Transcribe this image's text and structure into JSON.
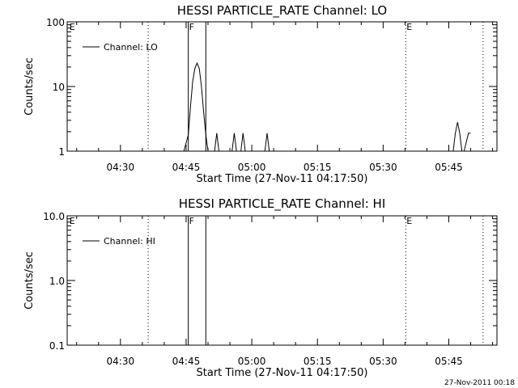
{
  "chart_data": [
    {
      "type": "line",
      "title": "HESSI PARTICLE_RATE Channel: LO",
      "xlabel": "Start Time (27-Nov-11 04:17:50)",
      "ylabel": "Counts/sec",
      "yscale": "log",
      "ylim": [
        1,
        100
      ],
      "ytick_values": [
        1,
        10,
        100
      ],
      "ytick_labels": [
        "1",
        "10",
        "100"
      ],
      "xlim": [
        "04:17:50",
        "05:56:00"
      ],
      "xtick_labels": [
        "04:30",
        "04:45",
        "05:00",
        "05:15",
        "05:30",
        "05:45"
      ],
      "legend": {
        "position": "top-left",
        "entries": [
          "Channel: LO"
        ]
      },
      "series": [
        {
          "name": "Channel: LO",
          "x": [
            "04:44:30",
            "04:45:30",
            "04:46:00",
            "04:46:30",
            "04:47:00",
            "04:47:30",
            "04:48:00",
            "04:48:30",
            "04:49:00",
            "04:49:30",
            "04:50:00",
            "04:51:30",
            "04:52:00",
            "04:52:30",
            "04:55:30",
            "04:56:00",
            "04:56:30",
            "04:57:30",
            "04:58:00",
            "04:58:30",
            "05:03:00",
            "05:03:30",
            "05:04:00",
            "05:46:00",
            "05:46:30",
            "05:47:00",
            "05:47:30",
            "05:48:00",
            "05:48:30",
            "05:49:30",
            "05:50:00"
          ],
          "y": [
            1,
            1.8,
            5,
            12,
            19,
            23,
            19,
            10,
            4,
            1.8,
            1,
            1,
            1.9,
            1,
            1,
            1.9,
            1,
            1,
            1.9,
            1,
            1,
            1.9,
            1,
            1,
            1.9,
            2.8,
            1.9,
            1,
            1,
            1.9,
            1.9
          ]
        }
      ],
      "markers": [
        {
          "time": "04:18:10",
          "style": "none",
          "label": "E"
        },
        {
          "time": "04:36:20",
          "style": "dotted",
          "label": ""
        },
        {
          "time": "04:45:30",
          "style": "solid",
          "label": "F"
        },
        {
          "time": "04:49:30",
          "style": "solid",
          "label": ""
        },
        {
          "time": "05:35:10",
          "style": "dotted",
          "label": "E"
        },
        {
          "time": "05:52:50",
          "style": "dotted",
          "label": ""
        }
      ]
    },
    {
      "type": "line",
      "title": "HESSI PARTICLE_RATE Channel: HI",
      "xlabel": "Start Time (27-Nov-11 04:17:50)",
      "ylabel": "Counts/sec",
      "yscale": "log",
      "ylim": [
        0.1,
        10
      ],
      "ytick_values": [
        0.1,
        1,
        10
      ],
      "ytick_labels": [
        "0.1",
        "1.0",
        "10.0"
      ],
      "xlim": [
        "04:17:50",
        "05:56:00"
      ],
      "xtick_labels": [
        "04:30",
        "04:45",
        "05:00",
        "05:15",
        "05:30",
        "05:45"
      ],
      "legend": {
        "position": "top-left",
        "entries": [
          "Channel: HI"
        ]
      },
      "series": [
        {
          "name": "Channel: HI",
          "x": [],
          "y": []
        }
      ],
      "markers": [
        {
          "time": "04:18:10",
          "style": "none",
          "label": "E"
        },
        {
          "time": "04:36:20",
          "style": "dotted",
          "label": ""
        },
        {
          "time": "04:45:30",
          "style": "solid",
          "label": "F"
        },
        {
          "time": "04:49:30",
          "style": "solid",
          "label": ""
        },
        {
          "time": "05:35:10",
          "style": "dotted",
          "label": "E"
        },
        {
          "time": "05:52:50",
          "style": "dotted",
          "label": ""
        }
      ]
    }
  ],
  "footer": {
    "timestamp": "27-Nov-2011 00:18"
  },
  "colors": {
    "background": "#ffffff",
    "foreground": "#000000"
  }
}
